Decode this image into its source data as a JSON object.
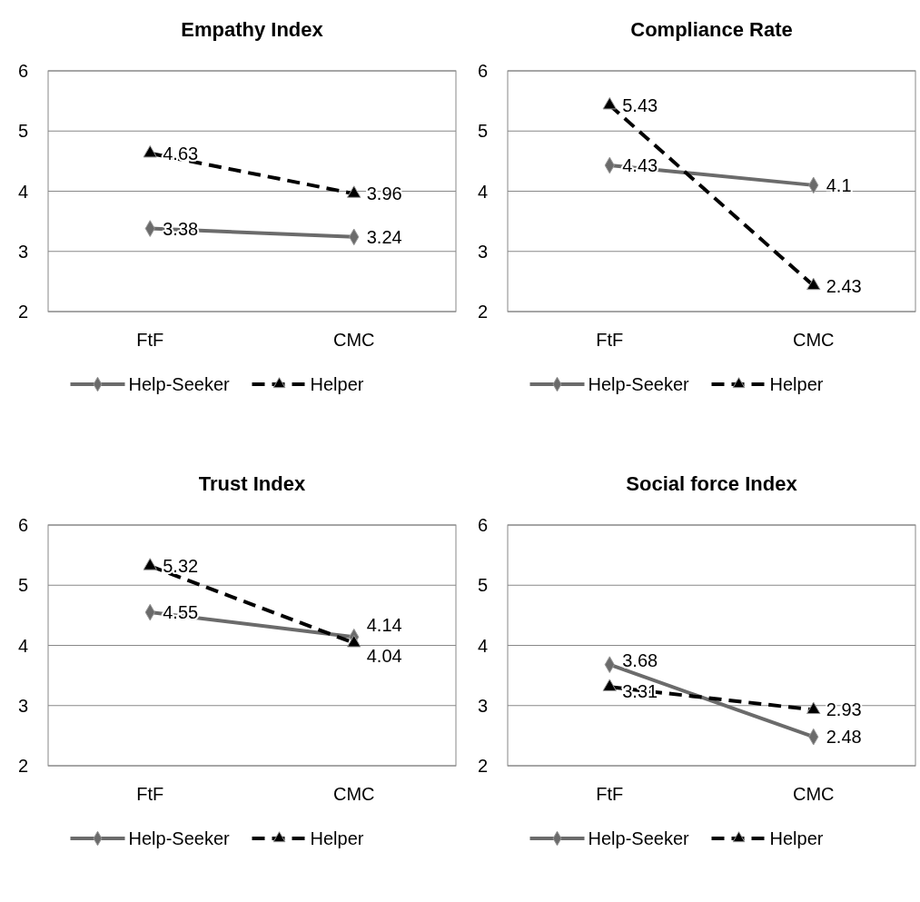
{
  "chart_data": [
    {
      "type": "line",
      "title": "Empathy Index",
      "categories": [
        "FtF",
        "CMC"
      ],
      "ylim": [
        2,
        6
      ],
      "yticks": [
        2,
        3,
        4,
        5,
        6
      ],
      "grid": "y",
      "legend": "bottom",
      "data_labels": true,
      "series": [
        {
          "name": "Help-Seeker",
          "color": "#6b6b6b",
          "marker": "diamond",
          "line_style": "solid",
          "values": [
            3.38,
            3.24
          ]
        },
        {
          "name": "Helper",
          "color": "#000000",
          "marker": "triangle",
          "line_style": "dashed",
          "values": [
            4.63,
            3.96
          ]
        }
      ]
    },
    {
      "type": "line",
      "title": "Compliance Rate",
      "categories": [
        "FtF",
        "CMC"
      ],
      "ylim": [
        2,
        6
      ],
      "yticks": [
        2,
        3,
        4,
        5,
        6
      ],
      "grid": "y",
      "legend": "bottom",
      "data_labels": true,
      "series": [
        {
          "name": "Help-Seeker",
          "color": "#6b6b6b",
          "marker": "diamond",
          "line_style": "solid",
          "values": [
            4.43,
            4.1
          ]
        },
        {
          "name": "Helper",
          "color": "#000000",
          "marker": "triangle",
          "line_style": "dashed",
          "values": [
            5.43,
            2.43
          ]
        }
      ]
    },
    {
      "type": "line",
      "title": "Trust Index",
      "categories": [
        "FtF",
        "CMC"
      ],
      "ylim": [
        2,
        6
      ],
      "yticks": [
        2,
        3,
        4,
        5,
        6
      ],
      "grid": "y",
      "legend": "bottom",
      "data_labels": true,
      "series": [
        {
          "name": "Help-Seeker",
          "color": "#6b6b6b",
          "marker": "diamond",
          "line_style": "solid",
          "values": [
            4.55,
            4.14
          ]
        },
        {
          "name": "Helper",
          "color": "#000000",
          "marker": "triangle",
          "line_style": "dashed",
          "values": [
            5.32,
            4.04
          ]
        }
      ]
    },
    {
      "type": "line",
      "title": "Social force Index",
      "categories": [
        "FtF",
        "CMC"
      ],
      "ylim": [
        2,
        6
      ],
      "yticks": [
        2,
        3,
        4,
        5,
        6
      ],
      "grid": "y",
      "legend": "bottom",
      "data_labels": true,
      "series": [
        {
          "name": "Help-Seeker",
          "color": "#6b6b6b",
          "marker": "diamond",
          "line_style": "solid",
          "values": [
            3.68,
            2.48
          ]
        },
        {
          "name": "Helper",
          "color": "#000000",
          "marker": "triangle",
          "line_style": "dashed",
          "values": [
            3.31,
            2.93
          ]
        }
      ]
    }
  ]
}
